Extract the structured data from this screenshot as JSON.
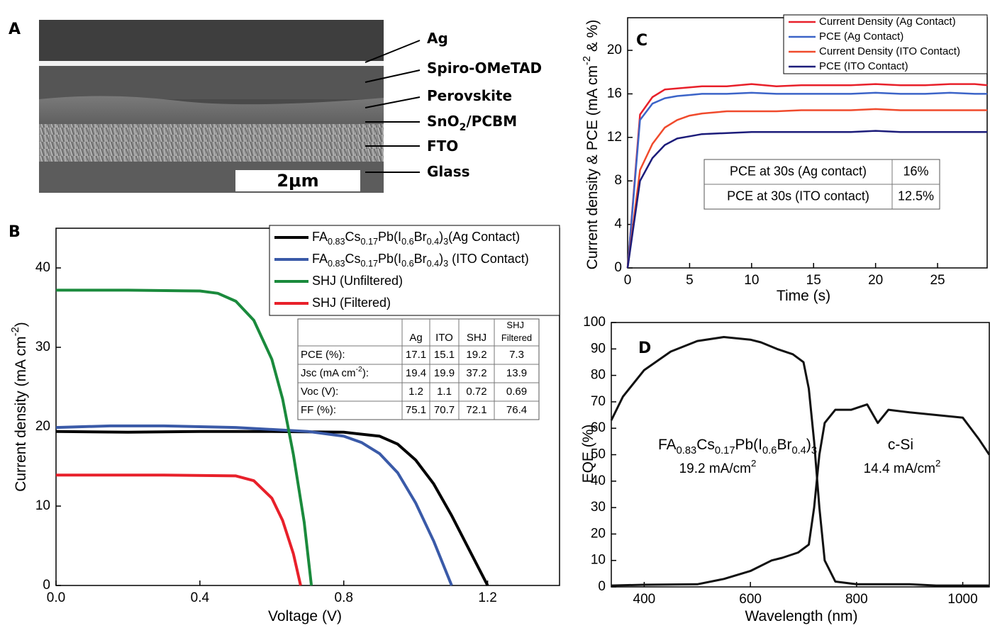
{
  "figure_panel": {
    "panel_label": "A",
    "layers": [
      "Ag",
      "Spiro-OMeTAD",
      "Perovskite",
      "SnO2/PCBM",
      "FTO",
      "Glass"
    ],
    "scale_bar": "2μm"
  },
  "chart_data": [
    {
      "type": "line",
      "panel_label": "B",
      "x_label": "Voltage (V)",
      "y_label": "Current density (mA cm-2)",
      "xlim": [
        0,
        1.4
      ],
      "ylim": [
        0,
        45
      ],
      "xticks": [
        {
          "value": 0,
          "label": "0.0"
        },
        {
          "value": 0.4,
          "label": "0.4"
        },
        {
          "value": 0.8,
          "label": "0.8"
        },
        {
          "value": 1.2,
          "label": "1.2"
        }
      ],
      "yticks": [
        0,
        10,
        20,
        30,
        40
      ],
      "grid": false,
      "legend": "upper right",
      "series": [
        {
          "name": "FA0.83Cs0.17Pb(I0.6Br0.4)3(Ag Contact)",
          "color": "#000000",
          "x": [
            0,
            0.2,
            0.4,
            0.6,
            0.8,
            0.9,
            0.95,
            1.0,
            1.05,
            1.1,
            1.15,
            1.2
          ],
          "values": [
            19.4,
            19.3,
            19.4,
            19.4,
            19.3,
            18.8,
            17.8,
            15.8,
            12.8,
            8.8,
            4.4,
            0
          ]
        },
        {
          "name": "FA0.83Cs0.17Pb(I0.6Br0.4)3 (ITO Contact)",
          "color": "#3a5aa8",
          "x": [
            0,
            0.15,
            0.3,
            0.5,
            0.7,
            0.8,
            0.85,
            0.9,
            0.95,
            1.0,
            1.05,
            1.1
          ],
          "values": [
            19.9,
            20.1,
            20.1,
            19.9,
            19.4,
            18.8,
            18.0,
            16.6,
            14.2,
            10.4,
            5.6,
            0
          ]
        },
        {
          "name": "SHJ (Unfiltered)",
          "color": "#1a8a3c",
          "x": [
            0,
            0.2,
            0.4,
            0.45,
            0.5,
            0.55,
            0.6,
            0.63,
            0.66,
            0.69,
            0.71
          ],
          "values": [
            37.2,
            37.2,
            37.1,
            36.8,
            35.8,
            33.4,
            28.5,
            23.5,
            16.5,
            8.0,
            0
          ]
        },
        {
          "name": "SHJ (Filtered)",
          "color": "#e8202a",
          "x": [
            0,
            0.3,
            0.5,
            0.55,
            0.6,
            0.63,
            0.66,
            0.68
          ],
          "values": [
            13.9,
            13.9,
            13.8,
            13.2,
            11.0,
            8.2,
            4.0,
            0
          ]
        }
      ],
      "table": {
        "header": [
          "Ag",
          "ITO",
          "SHJ",
          "SHJ Filtered"
        ],
        "rows": [
          {
            "label": "PCE (%):",
            "values": [
              17.1,
              15.1,
              19.2,
              7.3
            ]
          },
          {
            "label": "Jsc (mA cm-2):",
            "values": [
              19.4,
              19.9,
              37.2,
              13.9
            ]
          },
          {
            "label": "Voc (V):",
            "values": [
              1.2,
              1.1,
              0.72,
              0.69
            ]
          },
          {
            "label": "FF (%):",
            "values": [
              75.1,
              70.7,
              72.1,
              76.4
            ]
          }
        ]
      }
    },
    {
      "type": "line",
      "panel_label": "C",
      "x_label": "Time (s)",
      "y_label": "Current density & PCE (mA cm-2 & %)",
      "xlim": [
        0,
        29
      ],
      "ylim": [
        0,
        23
      ],
      "xticks": [
        0,
        5,
        10,
        15,
        20,
        25
      ],
      "yticks": [
        0,
        4,
        8,
        12,
        16,
        20
      ],
      "grid": false,
      "legend": "upper right",
      "series": [
        {
          "name": "Current Density (Ag Contact)",
          "color": "#e8202a",
          "x": [
            0,
            1,
            2,
            3,
            4,
            5,
            6,
            8,
            10,
            12,
            14,
            16,
            18,
            20,
            22,
            24,
            26,
            28,
            29
          ],
          "values": [
            0,
            14.1,
            15.7,
            16.4,
            16.5,
            16.6,
            16.7,
            16.7,
            16.9,
            16.7,
            16.8,
            16.8,
            16.8,
            16.9,
            16.8,
            16.8,
            16.9,
            16.9,
            16.8
          ]
        },
        {
          "name": "PCE (Ag Contact)",
          "color": "#3c64c8",
          "x": [
            0,
            1,
            2,
            3,
            4,
            5,
            6,
            8,
            10,
            12,
            14,
            16,
            18,
            20,
            22,
            24,
            26,
            28,
            29
          ],
          "values": [
            0,
            13.6,
            15.1,
            15.6,
            15.8,
            15.9,
            16.0,
            16.0,
            16.1,
            16.0,
            16.0,
            16.0,
            16.0,
            16.1,
            16.0,
            16.0,
            16.1,
            16.0,
            16.0
          ]
        },
        {
          "name": "Current Density (ITO Contact)",
          "color": "#f04a2c",
          "x": [
            0,
            1,
            2,
            3,
            4,
            5,
            6,
            8,
            10,
            12,
            14,
            16,
            18,
            20,
            22,
            24,
            26,
            28,
            29
          ],
          "values": [
            0,
            9.0,
            11.4,
            12.9,
            13.6,
            14.0,
            14.2,
            14.4,
            14.4,
            14.4,
            14.5,
            14.5,
            14.5,
            14.6,
            14.5,
            14.5,
            14.5,
            14.5,
            14.5
          ]
        },
        {
          "name": "PCE (ITO Contact)",
          "color": "#1c1c7a",
          "x": [
            0,
            1,
            2,
            3,
            4,
            5,
            6,
            8,
            10,
            12,
            14,
            16,
            18,
            20,
            22,
            24,
            26,
            28,
            29
          ],
          "values": [
            0,
            8.0,
            10.1,
            11.3,
            11.9,
            12.1,
            12.3,
            12.4,
            12.5,
            12.5,
            12.5,
            12.5,
            12.5,
            12.6,
            12.5,
            12.5,
            12.5,
            12.5,
            12.5
          ]
        }
      ],
      "table": {
        "rows": [
          {
            "label": "PCE at 30s  (Ag contact)",
            "values": [
              "16%"
            ]
          },
          {
            "label": "PCE at 30s  (ITO contact)",
            "values": [
              "12.5%"
            ]
          }
        ]
      }
    },
    {
      "type": "line",
      "panel_label": "D",
      "x_label": "Wavelength (nm)",
      "y_label": "EQE (%)",
      "xlim": [
        338,
        1050
      ],
      "ylim": [
        0,
        100
      ],
      "xticks": [
        400,
        600,
        800,
        1000
      ],
      "yticks": [
        0,
        10,
        20,
        30,
        40,
        50,
        60,
        70,
        80,
        90,
        100
      ],
      "grid": false,
      "series": [
        {
          "color": "#111111",
          "x": [
            338,
            360,
            400,
            450,
            500,
            550,
            600,
            620,
            650,
            680,
            700,
            710,
            720,
            730,
            740,
            760,
            800,
            850,
            900,
            950,
            1000,
            1050
          ],
          "values": [
            63,
            72,
            82,
            89,
            93,
            94.5,
            93.5,
            92.5,
            90,
            88,
            85,
            75,
            55,
            30,
            10,
            2,
            1,
            1,
            1,
            0.5,
            0.5,
            0.5
          ]
        },
        {
          "color": "#111111",
          "x": [
            338,
            400,
            500,
            550,
            600,
            640,
            660,
            690,
            710,
            720,
            730,
            740,
            760,
            790,
            820,
            840,
            860,
            900,
            950,
            1000,
            1030,
            1050
          ],
          "values": [
            0.5,
            0.8,
            1,
            3,
            6,
            10,
            11,
            13,
            16,
            30,
            50,
            62,
            67,
            67,
            69,
            62,
            67,
            66,
            65,
            64,
            56,
            50
          ]
        }
      ],
      "annotations": [
        "FA0.83Cs0.17Pb(I0.6Br0.4)3",
        "19.2 mA/cm2",
        "c-Si",
        "14.4 mA/cm2"
      ]
    }
  ]
}
